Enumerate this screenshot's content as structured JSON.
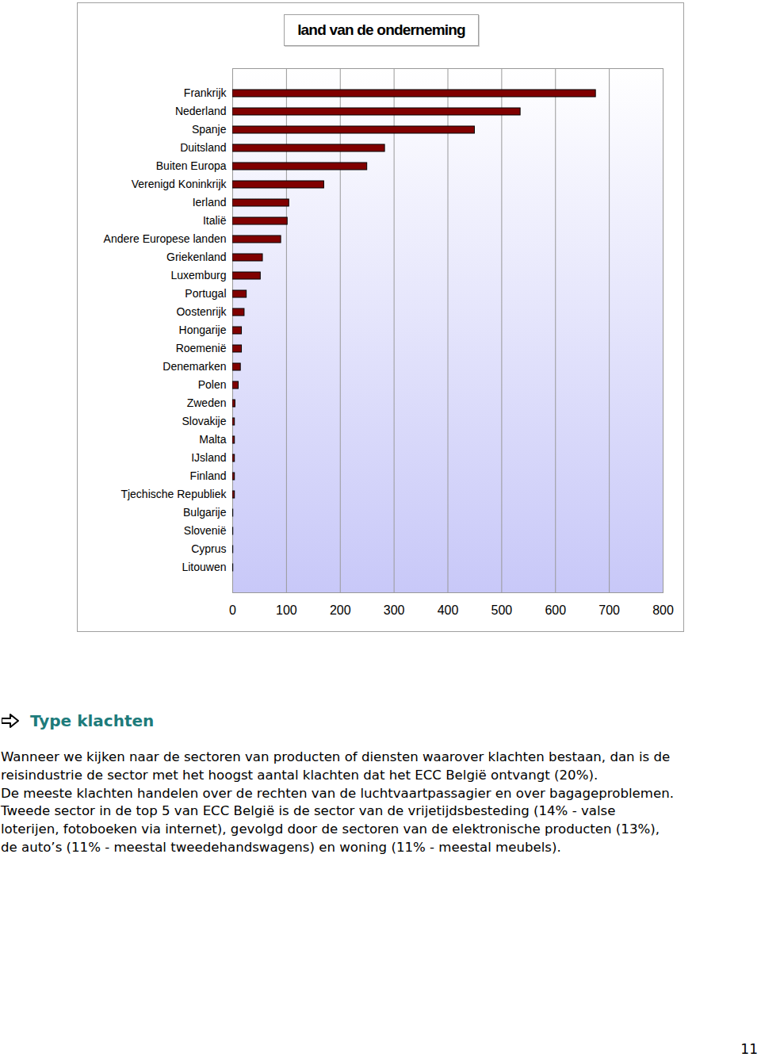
{
  "chart_data": {
    "type": "bar",
    "title": "land van de onderneming",
    "orientation": "horizontal",
    "categories": [
      "Frankrijk",
      "Nederland",
      "Spanje",
      "Duitsland",
      "Buiten Europa",
      "Verenigd Koninkrijk",
      "Ierland",
      "Italië",
      "Andere Europese landen",
      "Griekenland",
      "Luxemburg",
      "Portugal",
      "Oostenrijk",
      "Hongarije",
      "Roemenië",
      "Denemarken",
      "Polen",
      "Zweden",
      "Slovakije",
      "Malta",
      "IJsland",
      "Finland",
      "Tjechische Republiek",
      "Bulgarije",
      "Slovenië",
      "Cyprus",
      "Litouwen"
    ],
    "values": [
      675,
      535,
      450,
      283,
      250,
      170,
      105,
      102,
      90,
      56,
      52,
      26,
      22,
      17,
      17,
      15,
      11,
      5,
      4,
      4,
      4,
      4,
      4,
      1,
      1,
      1,
      1
    ],
    "color": "#800000",
    "xlim": [
      0,
      800
    ],
    "xticks": [
      0,
      100,
      200,
      300,
      400,
      500,
      600,
      700,
      800
    ],
    "grid": true,
    "data_labels": false
  },
  "section_heading": "Type klachten",
  "paragraph_lines": [
    "Wanneer we kijken naar de sectoren van producten of diensten waarover klachten bestaan, dan is de",
    "reisindustrie de sector met het hoogst aantal klachten dat het ECC België ontvangt (20%).",
    "De meeste klachten handelen over de rechten van de luchtvaartpassagier en over bagageproblemen.",
    "Tweede sector in de top 5 van ECC België is de sector van de vrijetijdsbesteding (14% - valse",
    "loterijen, fotoboeken via internet), gevolgd door de sectoren van de elektronische producten (13%),",
    "de auto’s (11% - meestal tweedehandswagens) en woning (11% - meestal meubels)."
  ],
  "page_number": "11"
}
